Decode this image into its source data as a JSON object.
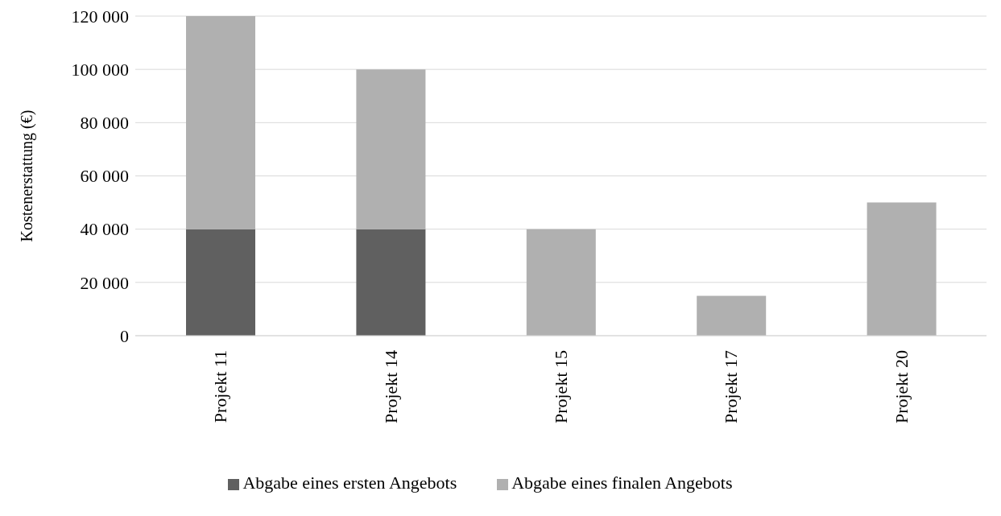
{
  "chart_data": {
    "type": "bar",
    "ylabel": "Kostenerstattung (€)",
    "categories": [
      "Projekt 11",
      "Projekt 14",
      "Projekt 15",
      "Projekt 17",
      "Projekt 20"
    ],
    "stacked": true,
    "series": [
      {
        "name": "Abgabe eines ersten Angebots",
        "color": "#606060",
        "values": [
          40000,
          40000,
          null,
          null,
          null
        ]
      },
      {
        "name": "Abgabe eines finalen Angebots",
        "color": "#b0b0b0",
        "values": [
          80000,
          60000,
          40000,
          15000,
          50000
        ]
      }
    ],
    "ylim": [
      0,
      120000
    ],
    "yticks": [
      {
        "value": 0,
        "label": "0"
      },
      {
        "value": 20000,
        "label": "20 000"
      },
      {
        "value": 40000,
        "label": "40 000"
      },
      {
        "value": 60000,
        "label": "60 000"
      },
      {
        "value": 80000,
        "label": "80 000"
      },
      {
        "value": 100000,
        "label": "100 000"
      },
      {
        "value": 120000,
        "label": "120 000"
      }
    ],
    "grid": "y",
    "legend": "bottom"
  }
}
